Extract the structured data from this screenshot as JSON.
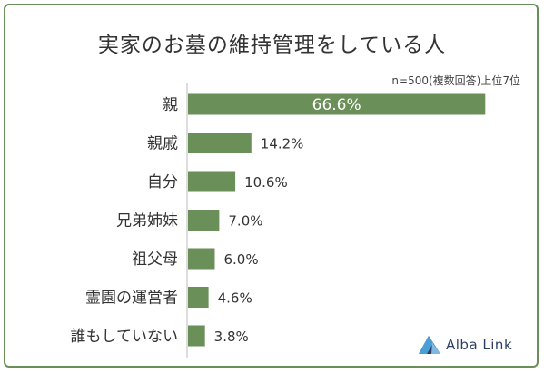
{
  "chart_data": {
    "type": "bar",
    "orientation": "horizontal",
    "title": "実家のお墓の維持管理をしている人",
    "note": "n=500(複数回答)上位7位",
    "categories": [
      "親",
      "親戚",
      "自分",
      "兄弟姉妹",
      "祖父母",
      "霊園の運営者",
      "誰もしていない"
    ],
    "values": [
      66.6,
      14.2,
      10.6,
      7.0,
      6.0,
      4.6,
      3.8
    ],
    "value_labels": [
      "66.6%",
      "14.2%",
      "10.6%",
      "7.0%",
      "6.0%",
      "4.6%",
      "3.8%"
    ],
    "unit": "%",
    "xlim": [
      0,
      70
    ],
    "bar_color": "#6a8f58",
    "grid": false,
    "legend": "none"
  },
  "branding": {
    "logo_text": "Alba Link",
    "logo_icon": "triangle-mountain-icon",
    "logo_color_dark": "#2c3e66",
    "logo_color_light": "#4a9fd6"
  },
  "frame_color": "#6a8f58"
}
